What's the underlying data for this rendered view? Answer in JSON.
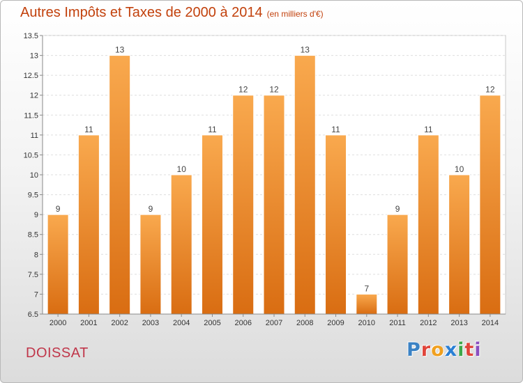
{
  "title": "Autres Impôts et Taxes de 2000 à 2014",
  "unit_note": "(en milliers d'€)",
  "commune": "DOISSAT",
  "logo": {
    "letters": [
      "P",
      "r",
      "o",
      "x",
      "i",
      "t",
      "i"
    ],
    "colors": [
      "#3b82c4",
      "#e0453b",
      "#f0a020",
      "#2a7fd4",
      "#3da84a",
      "#e0453b",
      "#8a4fbf"
    ]
  },
  "colors": {
    "bar_top": "#f9a94e",
    "bar_bottom": "#d96d12",
    "title": "#c2410c",
    "brand": "#c0364a"
  },
  "chart_data": {
    "type": "bar",
    "categories": [
      "2000",
      "2001",
      "2002",
      "2003",
      "2004",
      "2005",
      "2006",
      "2007",
      "2008",
      "2009",
      "2010",
      "2011",
      "2012",
      "2013",
      "2014"
    ],
    "values": [
      9,
      11,
      13,
      9,
      10,
      11,
      12,
      12,
      13,
      11,
      7,
      9,
      11,
      10,
      12
    ],
    "value_labels": [
      "9",
      "11",
      "13",
      "9",
      "10",
      "11",
      "12",
      "12",
      "13",
      "11",
      "7",
      "9",
      "11",
      "10",
      "12"
    ],
    "ylim": [
      6.5,
      13.5
    ],
    "yticks": [
      "6.5",
      "7",
      "7.5",
      "8",
      "8.5",
      "9",
      "9.5",
      "10",
      "10.5",
      "11",
      "11.5",
      "12",
      "12.5",
      "13",
      "13.5"
    ],
    "grid": true
  }
}
